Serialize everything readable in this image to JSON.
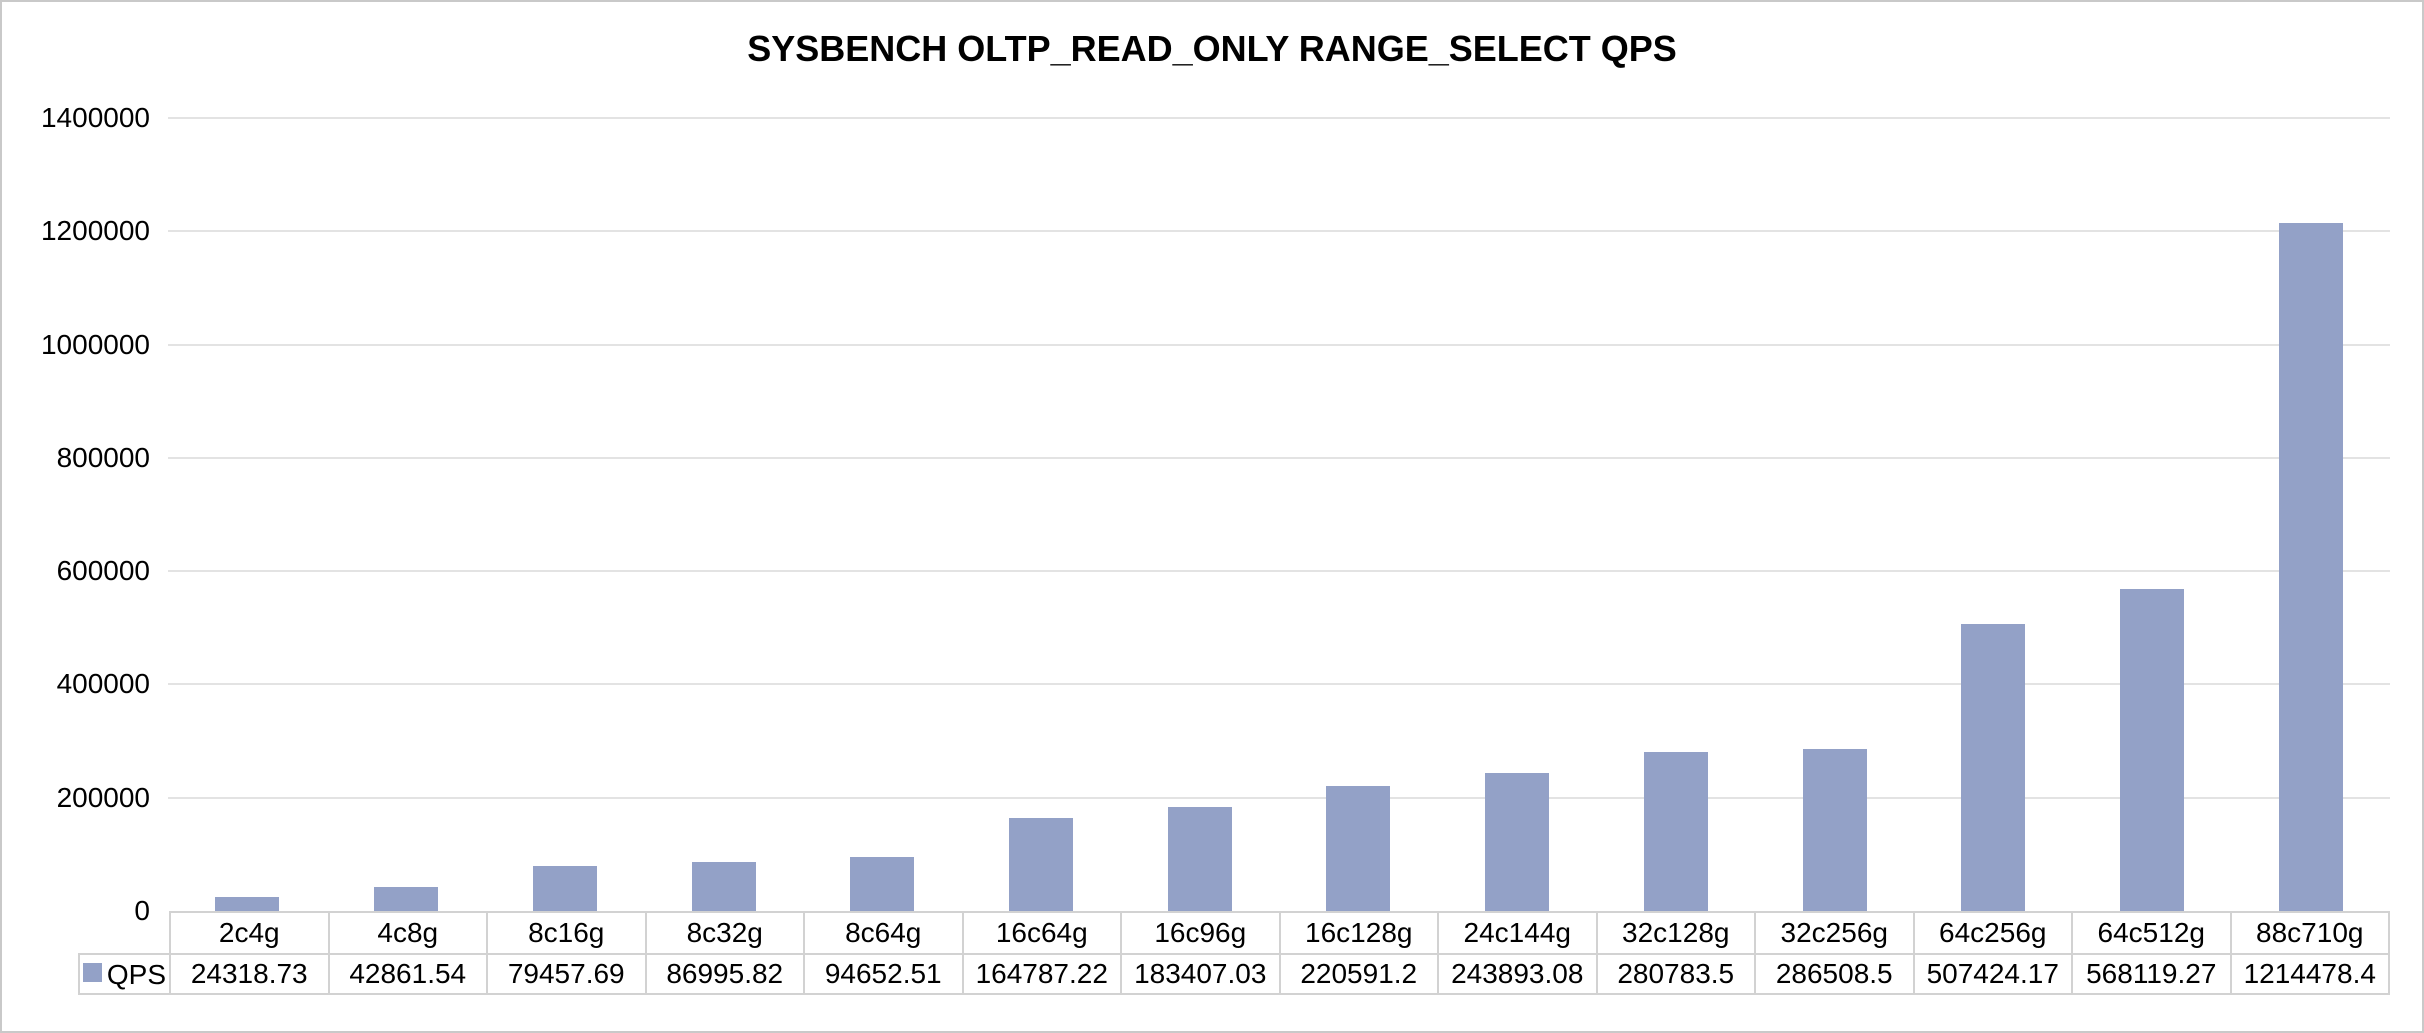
{
  "chart_data": {
    "type": "bar",
    "title": "SYSBENCH OLTP_READ_ONLY RANGE_SELECT QPS",
    "categories": [
      "2c4g",
      "4c8g",
      "8c16g",
      "8c32g",
      "8c64g",
      "16c64g",
      "16c96g",
      "16c128g",
      "24c144g",
      "32c128g",
      "32c256g",
      "64c256g",
      "64c512g",
      "88c710g"
    ],
    "series": [
      {
        "name": "QPS",
        "values": [
          24318.73,
          42861.54,
          79457.69,
          86995.82,
          94652.51,
          164787.22,
          183407.03,
          220591.2,
          243893.08,
          280783.5,
          286508.5,
          507424.17,
          568119.27,
          1214478.4
        ]
      }
    ],
    "xlabel": "",
    "ylabel": "",
    "ylim": [
      0,
      1400000
    ],
    "ytick_labels": [
      "0",
      "200000",
      "400000",
      "600000",
      "800000",
      "1000000",
      "1200000",
      "1400000"
    ],
    "grid": true,
    "legend_position": "data-table-left",
    "colors": {
      "bar": "#93a1c7",
      "gridline": "#e3e3e3",
      "table_border": "#d2d2d2",
      "figure_border": "#c9c9c9",
      "text": "#000000"
    }
  }
}
